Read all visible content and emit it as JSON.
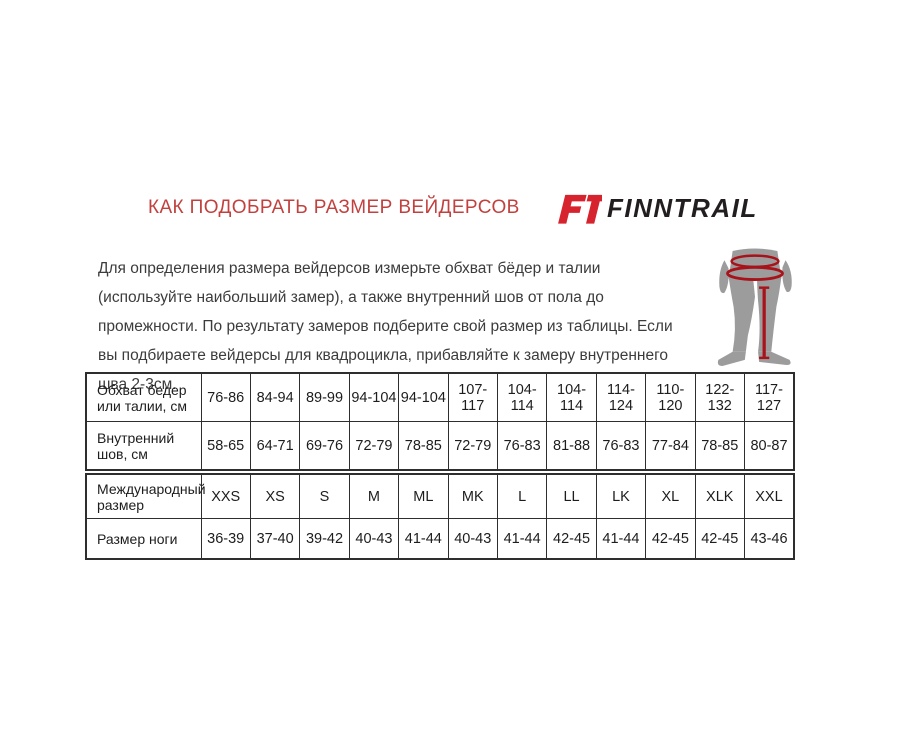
{
  "page": {
    "background": "#ffffff"
  },
  "header": {
    "title": "КАК ПОДОБРАТЬ РАЗМЕР ВЕЙДЕРСОВ",
    "brand": {
      "monogram": "FT",
      "name": "FINNTRAIL"
    }
  },
  "intro_text": "Для определения размера вейдерсов измерьте обхват бёдер и талии (используйте наибольший замер), а также внутренний шов от пола до промежности. По результату замеров подберите свой размер из таблицы. Если вы подбираете вейдерсы для квадроцикла, прибавляйте к замеру внутреннего шва 2-3см.",
  "figure": {
    "description": "legs-silhouette-with-hip-waist-circumference-and-inseam-measurement-marks"
  },
  "chart_data": {
    "type": "table",
    "title": "КАК ПОДОБРАТЬ РАЗМЕР ВЕЙДЕРСОВ",
    "tables": [
      {
        "name": "measurements",
        "rows": [
          {
            "label": "Обхват бедер или талии, см",
            "values": [
              "76-86",
              "84-94",
              "89-99",
              "94-104",
              "94-104",
              "107-117",
              "104-114",
              "104-114",
              "114-124",
              "110-120",
              "122-132",
              "117-127"
            ]
          },
          {
            "label": "Внутренний шов, см",
            "values": [
              "58-65",
              "64-71",
              "69-76",
              "72-79",
              "78-85",
              "72-79",
              "76-83",
              "81-88",
              "76-83",
              "77-84",
              "78-85",
              "80-87"
            ]
          }
        ]
      },
      {
        "name": "sizes",
        "rows": [
          {
            "label": "Международный размер",
            "values": [
              "XXS",
              "XS",
              "S",
              "M",
              "ML",
              "MK",
              "L",
              "LL",
              "LK",
              "XL",
              "XLK",
              "XXL"
            ]
          },
          {
            "label": "Размер ноги",
            "values": [
              "36-39",
              "37-40",
              "39-42",
              "40-43",
              "41-44",
              "40-43",
              "41-44",
              "42-45",
              "41-44",
              "42-45",
              "42-45",
              "43-46"
            ]
          }
        ]
      }
    ]
  },
  "colors": {
    "title_red": "#c2413e",
    "logo_red": "#d6232e",
    "logo_black": "#221e1f",
    "silhouette_gray": "#9c9c9c",
    "measure_red": "#a8121a",
    "table_border": "#2e2e2e",
    "body_text": "#3c3c3c"
  }
}
